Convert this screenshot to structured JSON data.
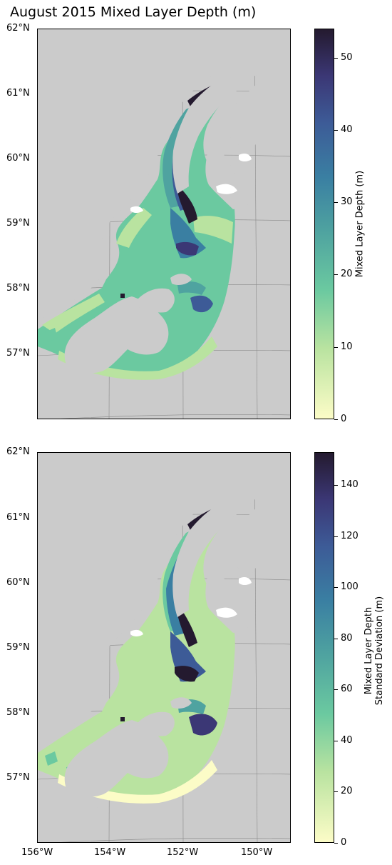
{
  "title": "August 2015 Mixed Layer Depth (m)",
  "lat_labels": [
    "62°N",
    "61°N",
    "60°N",
    "59°N",
    "58°N",
    "57°N"
  ],
  "lon_labels": [
    "156°W",
    "154°W",
    "152°W",
    "150°W"
  ],
  "panels": [
    {
      "colorbar": {
        "label_lines": [
          "Mixed Layer Depth (m)"
        ],
        "ticks": [
          "50",
          "40",
          "30",
          "20",
          "10",
          "0"
        ],
        "range": [
          0,
          54
        ]
      }
    },
    {
      "colorbar": {
        "label_lines": [
          "Mixed Layer Depth",
          "Standard Deviation (m)"
        ],
        "ticks": [
          "140",
          "120",
          "100",
          "80",
          "60",
          "40",
          "20",
          "0"
        ],
        "range": [
          0,
          153
        ]
      }
    }
  ],
  "colors": {
    "land": "#cbcbcb",
    "colormap": [
      "#fcfcc7",
      "#b9e3a0",
      "#6bc9a0",
      "#4fa3a0",
      "#3a7fa2",
      "#3d5b97",
      "#3b3775",
      "#241a2f"
    ]
  }
}
